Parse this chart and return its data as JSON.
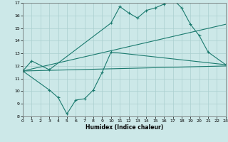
{
  "xlabel": "Humidex (Indice chaleur)",
  "bg_color": "#cce8e8",
  "grid_color": "#aacfcf",
  "line_color": "#1a7a6e",
  "xmin": 0,
  "xmax": 23,
  "ymin": 8,
  "ymax": 17,
  "s0x": [
    0,
    1,
    3,
    10,
    11,
    12,
    13,
    14,
    15,
    16,
    17,
    18,
    19,
    20,
    21,
    23
  ],
  "s0y": [
    11.6,
    12.4,
    11.7,
    15.4,
    16.7,
    16.2,
    15.8,
    16.4,
    16.6,
    16.9,
    17.3,
    16.6,
    15.3,
    14.4,
    13.1,
    12.1
  ],
  "s1x": [
    0,
    3,
    4,
    5,
    6,
    7,
    8,
    9,
    10,
    23
  ],
  "s1y": [
    11.6,
    10.1,
    9.5,
    8.2,
    9.3,
    9.4,
    10.1,
    11.5,
    13.1,
    12.1
  ],
  "s2x": [
    0,
    23
  ],
  "s2y": [
    11.6,
    15.3
  ],
  "s3x": [
    0,
    23
  ],
  "s3y": [
    11.6,
    12.0
  ]
}
